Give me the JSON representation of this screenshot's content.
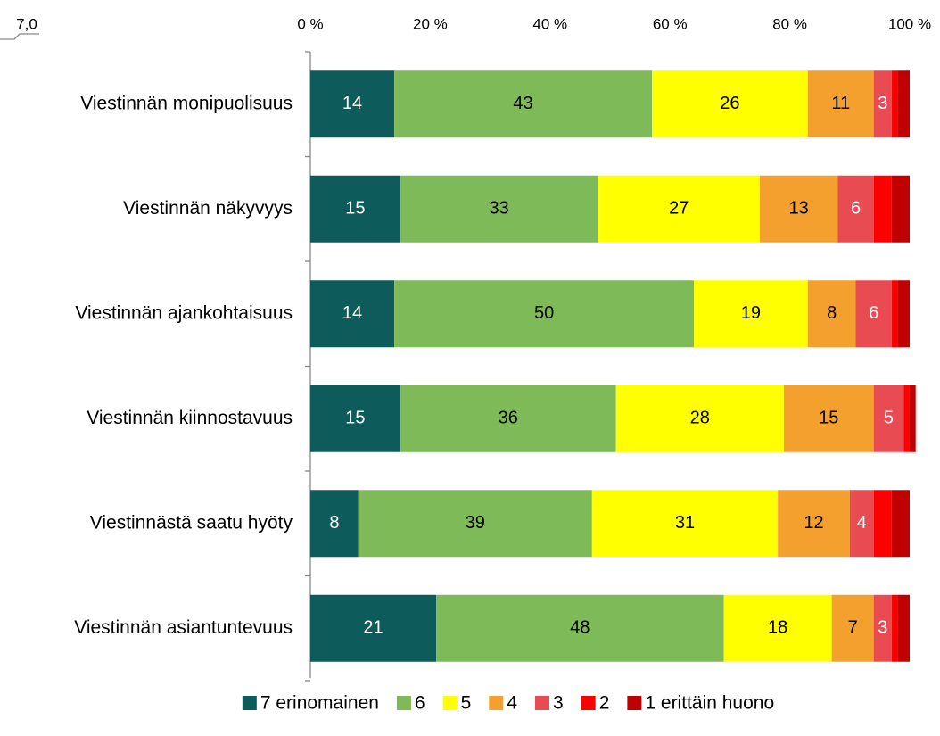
{
  "chart_data": {
    "type": "stacked_bar_horizontal",
    "annotation": "7,0",
    "categories": [
      "Viestinnän monipuolisuus",
      "Viestinnän näkyvyys",
      "Viestinnän ajankohtaisuus",
      "Viestinnän kiinnostavuus",
      "Viestinnästä saatu hyöty",
      "Viestinnän asiantuntevuus"
    ],
    "series": [
      {
        "name": "7 erinomainen",
        "color": "#0e5b5b",
        "label_color": "#ffffff",
        "labels": true,
        "values": [
          14,
          15,
          14,
          15,
          8,
          21
        ]
      },
      {
        "name": "6",
        "color": "#7fba58",
        "label_color": "#000000",
        "labels": true,
        "values": [
          43,
          33,
          50,
          36,
          39,
          48
        ]
      },
      {
        "name": "5",
        "color": "#ffff00",
        "label_color": "#000000",
        "labels": true,
        "values": [
          26,
          27,
          19,
          28,
          31,
          18
        ]
      },
      {
        "name": "4",
        "color": "#f4a02e",
        "label_color": "#000000",
        "labels": true,
        "values": [
          11,
          13,
          8,
          15,
          12,
          7
        ]
      },
      {
        "name": "3",
        "color": "#e84c52",
        "label_color": "#ffffff",
        "labels": true,
        "values": [
          3,
          6,
          6,
          5,
          4,
          3
        ]
      },
      {
        "name": "2",
        "color": "#ff0000",
        "label_color": "#ffffff",
        "labels": false,
        "values": [
          1,
          3,
          1,
          1,
          3,
          1
        ]
      },
      {
        "name": "1 erittäin huono",
        "color": "#c00000",
        "label_color": "#ffffff",
        "labels": false,
        "values": [
          2,
          3,
          2,
          1,
          3,
          2
        ]
      }
    ],
    "xlim": [
      0,
      100
    ],
    "xticks": [
      {
        "value": 0,
        "label": "0 %"
      },
      {
        "value": 20,
        "label": "20 %"
      },
      {
        "value": 40,
        "label": "40 %"
      },
      {
        "value": 60,
        "label": "60 %"
      },
      {
        "value": 80,
        "label": "80 %"
      },
      {
        "value": 100,
        "label": "100 %"
      }
    ],
    "grid": false,
    "legend": "bottom"
  }
}
